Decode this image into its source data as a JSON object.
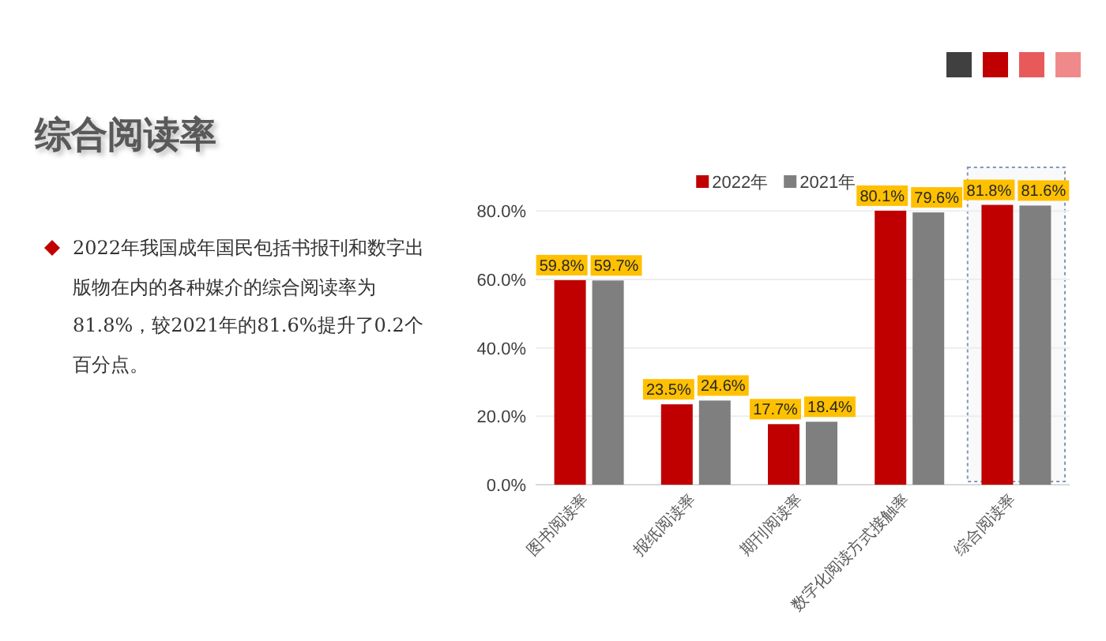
{
  "chart_data": {
    "type": "bar",
    "title": "综合阅读率",
    "annotations": [
      "2022年我国成年国民包括书报刊和数字出版物在内的各种媒介的综合阅读率为81.8%，较2021年的81.6%提升了0.2个百分点。"
    ],
    "categories": [
      "图书阅读率",
      "报纸阅读率",
      "期刊阅读率",
      "数字化阅读方式接触率",
      "综合阅读率"
    ],
    "series": [
      {
        "name": "2022年",
        "color": "#c00000",
        "values": [
          59.8,
          23.5,
          17.7,
          80.1,
          81.8
        ],
        "value_labels": [
          "59.8%",
          "23.5%",
          "17.7%",
          "80.1%",
          "81.8%"
        ]
      },
      {
        "name": "2021年",
        "color": "#7f7f7f",
        "values": [
          59.7,
          24.6,
          18.4,
          79.6,
          81.6
        ],
        "value_labels": [
          "59.7%",
          "24.6%",
          "18.4%",
          "79.6%",
          "81.6%"
        ]
      }
    ],
    "ylim": [
      0,
      90
    ],
    "yticks": [
      {
        "value": 0,
        "label": "0.0%"
      },
      {
        "value": 20,
        "label": "20.0%"
      },
      {
        "value": 40,
        "label": "40.0%"
      },
      {
        "value": 60,
        "label": "60.0%"
      },
      {
        "value": 80,
        "label": "80.0%"
      }
    ],
    "grid": "y",
    "legend": "top",
    "bands": [
      {
        "axis": "x",
        "from": "综合阅读率",
        "to": "综合阅读率",
        "color": "#8497b0"
      }
    ]
  }
}
